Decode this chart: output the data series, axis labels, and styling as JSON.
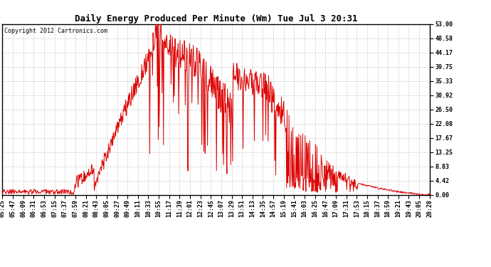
{
  "title": "Daily Energy Produced Per Minute (Wm) Tue Jul 3 20:31",
  "copyright": "Copyright 2012 Cartronics.com",
  "line_color": "#dd0000",
  "bg_color": "#ffffff",
  "grid_color": "#cccccc",
  "yticks": [
    0.0,
    4.42,
    8.83,
    13.25,
    17.67,
    22.08,
    26.5,
    30.92,
    35.33,
    39.75,
    44.17,
    48.58,
    53.0
  ],
  "ymax": 53.0,
  "ymin": 0.0,
  "xtick_labels": [
    "05:25",
    "05:47",
    "06:09",
    "06:31",
    "06:53",
    "07:15",
    "07:37",
    "07:59",
    "08:21",
    "08:43",
    "09:05",
    "09:27",
    "09:49",
    "10:11",
    "10:33",
    "10:55",
    "11:17",
    "11:39",
    "12:01",
    "12:23",
    "12:45",
    "13:07",
    "13:29",
    "13:51",
    "14:13",
    "14:35",
    "14:57",
    "15:19",
    "15:41",
    "16:03",
    "16:25",
    "16:47",
    "17:09",
    "17:31",
    "17:53",
    "18:15",
    "18:37",
    "18:59",
    "19:21",
    "19:43",
    "20:05",
    "20:28"
  ],
  "title_fontsize": 9,
  "tick_fontsize": 6,
  "copyright_fontsize": 6
}
